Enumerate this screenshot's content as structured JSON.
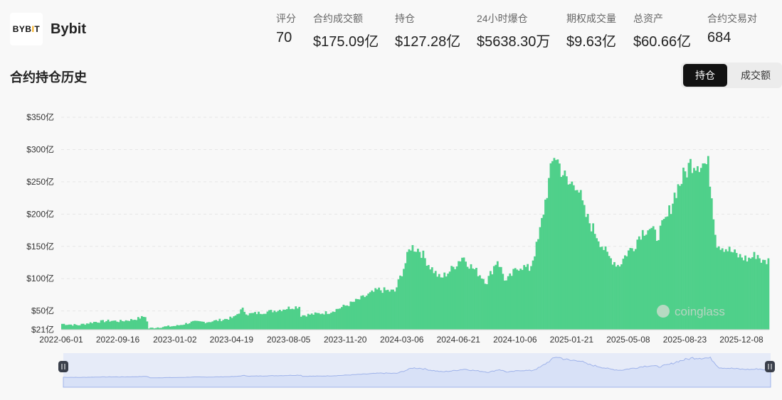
{
  "exchange": {
    "logo_text_a": "BYB",
    "logo_text_b": "I",
    "logo_text_c": "T",
    "name": "Bybit"
  },
  "stats": [
    {
      "label": "评分",
      "value": "70"
    },
    {
      "label": "合约成交额",
      "value": "$175.09亿"
    },
    {
      "label": "持仓",
      "value": "$127.28亿"
    },
    {
      "label": "24小时爆仓",
      "value": "$5638.30万"
    },
    {
      "label": "期权成交量",
      "value": "$9.63亿"
    },
    {
      "label": "总资产",
      "value": "$60.66亿"
    },
    {
      "label": "合约交易对",
      "value": "684"
    }
  ],
  "section_title": "合约持仓历史",
  "toggle": {
    "active": "持仓",
    "inactive": "成交额"
  },
  "watermark": "coinglass",
  "colors": {
    "bar": "#4fd08a",
    "navigator_fill": "#d8e1f7",
    "navigator_line": "#9fb3ea",
    "active_btn": "#121212"
  },
  "chart_data": {
    "type": "bar",
    "title": "",
    "xlabel": "",
    "ylabel": "",
    "ylim": [
      21,
      350
    ],
    "y_ticks": [
      {
        "value": 21,
        "label": "$21亿"
      },
      {
        "value": 50,
        "label": "$50亿"
      },
      {
        "value": 100,
        "label": "$100亿"
      },
      {
        "value": 150,
        "label": "$150亿"
      },
      {
        "value": 200,
        "label": "$200亿"
      },
      {
        "value": 250,
        "label": "$250亿"
      },
      {
        "value": 300,
        "label": "$300亿"
      },
      {
        "value": 350,
        "label": "$350亿"
      }
    ],
    "x_ticks": [
      "2022-06-01",
      "2022-09-16",
      "2023-01-02",
      "2023-04-19",
      "2023-08-05",
      "2023-11-20",
      "2024-03-06",
      "2024-06-21",
      "2024-10-06",
      "2025-01-21",
      "2025-05-08",
      "2025-08-23",
      "2025-12-08"
    ],
    "series": [
      {
        "unit": "亿 USD",
        "points": [
          [
            "2022-06-01",
            30
          ],
          [
            "2022-07-01",
            28
          ],
          [
            "2022-08-01",
            33
          ],
          [
            "2022-09-01",
            35
          ],
          [
            "2022-09-16",
            34
          ],
          [
            "2022-10-15",
            37
          ],
          [
            "2022-11-05",
            42
          ],
          [
            "2022-11-10",
            23
          ],
          [
            "2022-12-01",
            25
          ],
          [
            "2023-01-02",
            27
          ],
          [
            "2023-02-01",
            33
          ],
          [
            "2023-03-01",
            33
          ],
          [
            "2023-04-01",
            37
          ],
          [
            "2023-04-19",
            40
          ],
          [
            "2023-05-05",
            53
          ],
          [
            "2023-05-15",
            45
          ],
          [
            "2023-06-15",
            48
          ],
          [
            "2023-07-15",
            52
          ],
          [
            "2023-08-01",
            55
          ],
          [
            "2023-08-20",
            57
          ],
          [
            "2023-08-22",
            43
          ],
          [
            "2023-09-15",
            45
          ],
          [
            "2023-10-15",
            48
          ],
          [
            "2023-11-20",
            60
          ],
          [
            "2023-12-15",
            70
          ],
          [
            "2024-01-15",
            83
          ],
          [
            "2024-02-15",
            80
          ],
          [
            "2024-03-06",
            125
          ],
          [
            "2024-03-15",
            150
          ],
          [
            "2024-04-01",
            145
          ],
          [
            "2024-04-20",
            120
          ],
          [
            "2024-05-10",
            100
          ],
          [
            "2024-06-01",
            115
          ],
          [
            "2024-06-21",
            135
          ],
          [
            "2024-07-05",
            120
          ],
          [
            "2024-07-25",
            105
          ],
          [
            "2024-08-05",
            95
          ],
          [
            "2024-08-25",
            130
          ],
          [
            "2024-09-10",
            95
          ],
          [
            "2024-09-25",
            110
          ],
          [
            "2024-10-06",
            120
          ],
          [
            "2024-10-25",
            115
          ],
          [
            "2024-11-10",
            160
          ],
          [
            "2024-11-25",
            230
          ],
          [
            "2024-12-10",
            295
          ],
          [
            "2024-12-20",
            275
          ],
          [
            "2025-01-05",
            245
          ],
          [
            "2025-01-21",
            250
          ],
          [
            "2025-02-05",
            200
          ],
          [
            "2025-03-01",
            165
          ],
          [
            "2025-03-20",
            135
          ],
          [
            "2025-04-10",
            120
          ],
          [
            "2025-04-25",
            140
          ],
          [
            "2025-05-08",
            150
          ],
          [
            "2025-05-20",
            170
          ],
          [
            "2025-06-05",
            180
          ],
          [
            "2025-06-20",
            165
          ],
          [
            "2025-07-10",
            195
          ],
          [
            "2025-07-25",
            235
          ],
          [
            "2025-08-10",
            260
          ],
          [
            "2025-08-23",
            280
          ],
          [
            "2025-09-10",
            280
          ],
          [
            "2025-09-25",
            275
          ],
          [
            "2025-10-10",
            155
          ],
          [
            "2025-11-01",
            145
          ],
          [
            "2025-11-20",
            135
          ],
          [
            "2025-12-08",
            130
          ],
          [
            "2025-12-25",
            138
          ],
          [
            "2026-01-05",
            125
          ],
          [
            "2026-01-15",
            128
          ]
        ]
      }
    ]
  }
}
